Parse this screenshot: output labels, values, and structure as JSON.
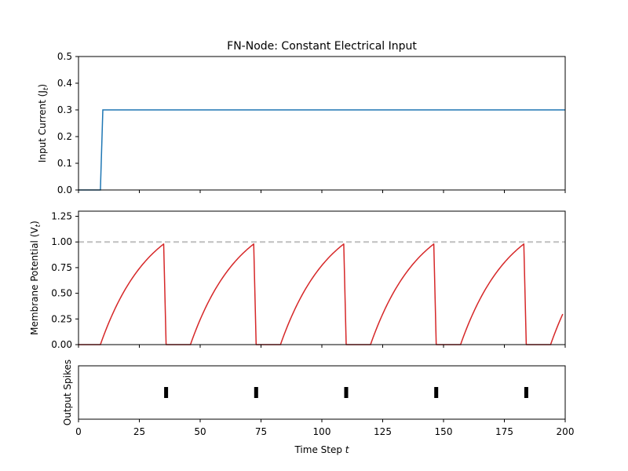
{
  "chart_data": [
    {
      "type": "line",
      "title": "FN-Node: Constant Electrical Input",
      "ylabel": "Input Current (J",
      "ylabel_sub": "t",
      "ylabel_close": ")",
      "ylim": [
        0,
        0.5
      ],
      "yticks": [
        "0.0",
        "0.1",
        "0.2",
        "0.3",
        "0.4",
        "0.5"
      ],
      "xlim": [
        0,
        200
      ],
      "color": "#1f77b4",
      "series": [
        {
          "x": [
            0,
            9,
            10,
            200
          ],
          "y": [
            0,
            0,
            0.3,
            0.3
          ]
        }
      ]
    },
    {
      "type": "line",
      "ylabel": "Membrane Potential (V",
      "ylabel_sub": "t",
      "ylabel_close": ")",
      "ylim": [
        0,
        1.3
      ],
      "yticks": [
        "0.00",
        "0.25",
        "0.50",
        "0.75",
        "1.00",
        "1.25"
      ],
      "xlim": [
        0,
        200
      ],
      "color": "#d62728",
      "threshold": 1.0,
      "threshold_color": "#bfbfbf",
      "spike_times": [
        36,
        73,
        110,
        147,
        184
      ],
      "refractory_steps": 10,
      "rise_tau": 20
    },
    {
      "type": "scatter",
      "ylabel": "Output Spikes",
      "xlabel": "Time Step ",
      "xlabel_var": "t",
      "xlim": [
        0,
        200
      ],
      "xticks": [
        "0",
        "25",
        "50",
        "75",
        "100",
        "125",
        "150",
        "175",
        "200"
      ],
      "spike_times": [
        36,
        73,
        110,
        147,
        184
      ],
      "color": "#000000"
    }
  ]
}
